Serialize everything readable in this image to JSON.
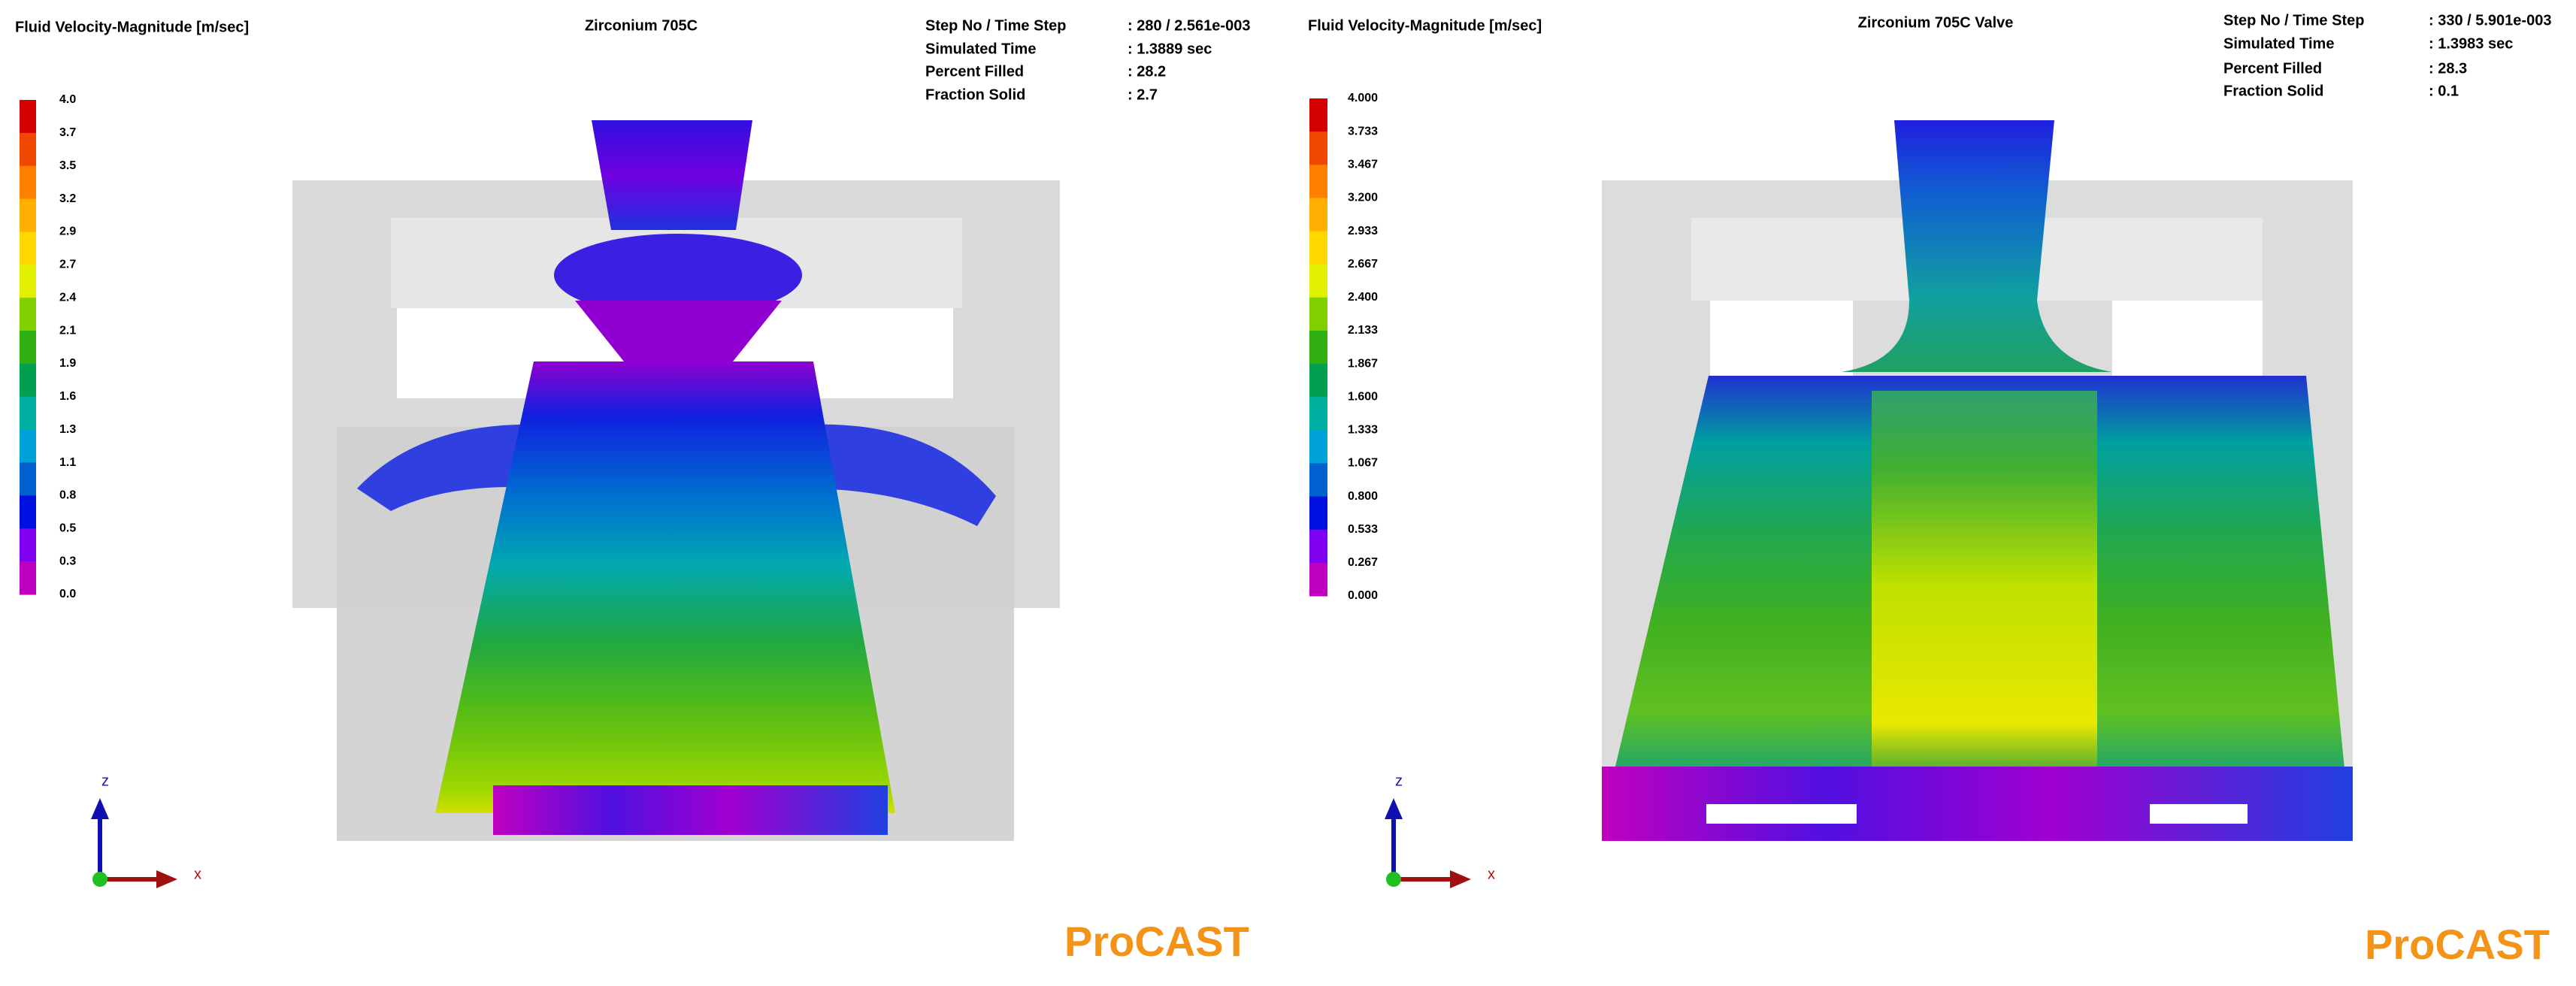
{
  "panels": [
    {
      "legend_title": "Fluid Velocity-Magnitude  [m/sec]",
      "title": "Zirconium 705C",
      "info": [
        {
          "label": "Step No / Time Step",
          "value": ": 280  /  2.561e-003"
        },
        {
          "label": "Simulated Time",
          "value": ": 1.3889 sec"
        },
        {
          "label": "Percent Filled",
          "value": ": 28.2"
        },
        {
          "label": "Fraction Solid",
          "value": ": 2.7"
        }
      ],
      "scale_labels": [
        "4.0",
        "3.7",
        "3.5",
        "3.2",
        "2.9",
        "2.7",
        "2.4",
        "2.1",
        "1.9",
        "1.6",
        "1.3",
        "1.1",
        "0.8",
        "0.5",
        "0.3",
        "0.0"
      ],
      "axis_z": "z",
      "axis_x": "x",
      "brand": "ProCAST"
    },
    {
      "legend_title": "Fluid Velocity-Magnitude  [m/sec]",
      "title": "Zirconium 705C Valve",
      "info": [
        {
          "label": "Step No / Time Step",
          "value": ": 330  /  5.901e-003"
        },
        {
          "label": "Simulated Time",
          "value": ": 1.3983 sec"
        },
        {
          "label": "Percent Filled",
          "value": ": 28.3"
        },
        {
          "label": "Fraction Solid",
          "value": ": 0.1"
        }
      ],
      "scale_labels": [
        "4.000",
        "3.733",
        "3.467",
        "3.200",
        "2.933",
        "2.667",
        "2.400",
        "2.133",
        "1.867",
        "1.600",
        "1.333",
        "1.067",
        "0.800",
        "0.533",
        "0.267",
        "0.000"
      ],
      "axis_z": "z",
      "axis_x": "x",
      "brand": "ProCAST"
    }
  ]
}
